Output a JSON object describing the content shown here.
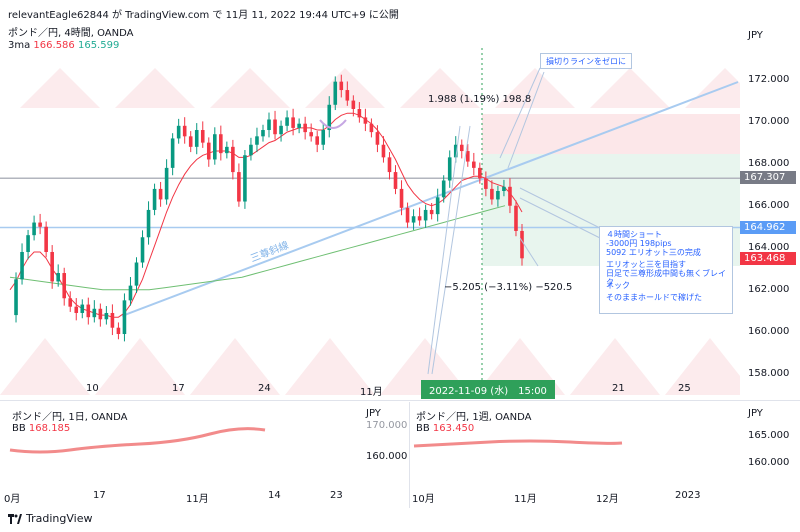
{
  "header": {
    "text": "relevantEagle62844 が TradingView.com で 11月 11, 2022 19:44 UTC+9 に公開"
  },
  "main": {
    "title": "ポンド／円, 4時間, OANDA",
    "indicator_label": "3ma",
    "indicator_value1": "166.586",
    "indicator_value2": "165.599",
    "currency": "JPY",
    "y_ticks": [
      "172.000",
      "170.000",
      "168.000",
      "166.000",
      "164.000",
      "162.000",
      "160.000",
      "158.000"
    ],
    "x_ticks": [
      "10",
      "17",
      "24",
      "11月",
      "21",
      "25"
    ],
    "price_tags": [
      {
        "value": "167.307",
        "color": "#787b86"
      },
      {
        "value": "164.962",
        "color": "#5b9cf6"
      },
      {
        "value": "163.468",
        "color": "#f23645"
      }
    ],
    "annotations": {
      "stop_line": "損切りラインをゼロに",
      "trendline_label": "三尊斜線",
      "measure_up": "1.988 (1.19%) 198.8",
      "measure_down": "−5.205 (−3.11%) −520.5",
      "date_marker": "2022-11-09 (水)　15:00",
      "note_lines": [
        "４時間ショート",
        "-3000円 198pips",
        "5092 エリオット三の完成",
        "",
        "エリオッと三を目指す",
        "日足で三尊形成中間も無くブレイク",
        "",
        "ネック",
        "",
        "そのままホールドで稼げた"
      ]
    }
  },
  "daily": {
    "title": "ポンド／円, 1日, OANDA",
    "bb_label": "BB",
    "bb_value": "168.185",
    "currency": "JPY",
    "y_ticks": [
      "170.000",
      "160.000"
    ],
    "x_ticks": [
      "0月",
      "17",
      "11月",
      "14",
      "23"
    ]
  },
  "weekly": {
    "title": "ポンド／円, 1週, OANDA",
    "bb_label": "BB",
    "bb_value": "163.450",
    "currency": "JPY",
    "y_ticks": [
      "165.000",
      "160.000"
    ],
    "x_ticks": [
      "10月",
      "11月",
      "12月",
      "2023"
    ]
  },
  "footer": {
    "brand": "TradingView"
  },
  "chart_data": {
    "type": "line",
    "title": "ポンド／円, 4時間, OANDA",
    "ylabel": "JPY",
    "ylim": [
      157,
      173.5
    ],
    "close_path": [
      160.8,
      162.5,
      163.8,
      164.6,
      165.2,
      165.0,
      163.8,
      162.4,
      162.8,
      161.6,
      161.2,
      160.9,
      161.3,
      160.7,
      161.1,
      160.6,
      160.9,
      160.2,
      159.9,
      161.5,
      162.2,
      163.3,
      164.5,
      165.8,
      166.8,
      166.3,
      167.8,
      169.2,
      169.8,
      169.3,
      168.8,
      169.6,
      169.0,
      168.2,
      169.4,
      168.5,
      168.8,
      167.6,
      166.2,
      168.4,
      168.9,
      169.3,
      169.6,
      170.1,
      169.4,
      169.8,
      170.2,
      169.7,
      169.9,
      169.5,
      169.3,
      168.9,
      169.6,
      170.8,
      171.9,
      171.5,
      171.0,
      170.6,
      170.2,
      169.9,
      169.5,
      168.9,
      168.3,
      167.6,
      166.8,
      165.9,
      165.2,
      165.5,
      165.3,
      165.8,
      165.6,
      166.4,
      167.2,
      168.3,
      168.9,
      168.6,
      168.1,
      167.8,
      167.3,
      166.8,
      166.3,
      166.7,
      166.9,
      166.0,
      164.8,
      163.5
    ],
    "ma_fast_path": [
      162.0,
      162.4,
      163.0,
      163.5,
      163.8,
      163.8,
      163.5,
      163.0,
      162.6,
      162.1,
      161.6,
      161.3,
      161.1,
      161.0,
      160.9,
      160.8,
      160.8,
      160.7,
      160.7,
      160.9,
      161.3,
      161.9,
      162.5,
      163.3,
      164.1,
      164.9,
      165.7,
      166.4,
      167.0,
      167.5,
      167.9,
      168.2,
      168.4,
      168.5,
      168.6,
      168.6,
      168.6,
      168.5,
      168.3,
      168.3,
      168.4,
      168.6,
      168.8,
      169.0,
      169.1,
      169.3,
      169.5,
      169.6,
      169.7,
      169.7,
      169.7,
      169.6,
      169.6,
      169.8,
      170.1,
      170.3,
      170.4,
      170.4,
      170.3,
      170.1,
      169.9,
      169.6,
      169.2,
      168.7,
      168.2,
      167.6,
      167.0,
      166.6,
      166.3,
      166.1,
      166.0,
      166.1,
      166.3,
      166.6,
      166.9,
      167.2,
      167.3,
      167.4,
      167.4,
      167.3,
      167.1,
      167.0,
      166.9,
      166.6,
      166.2,
      165.7
    ],
    "ma_slow_path": [
      162.6,
      162.5,
      162.4,
      162.3,
      162.2,
      162.1,
      162.0,
      162.0,
      162.0,
      162.0,
      162.1,
      162.2,
      162.3,
      162.4,
      162.5,
      162.6,
      162.8,
      163.0,
      163.2,
      163.4,
      163.6,
      163.8,
      164.0,
      164.2,
      164.4,
      164.6,
      164.8,
      165.0,
      165.2,
      165.4,
      165.6,
      165.8,
      166.0
    ],
    "horizontal_lines": [
      167.307,
      164.962
    ],
    "last_price": 163.468,
    "annotations": [
      "三尊斜線",
      "損切りラインをゼロに"
    ]
  }
}
